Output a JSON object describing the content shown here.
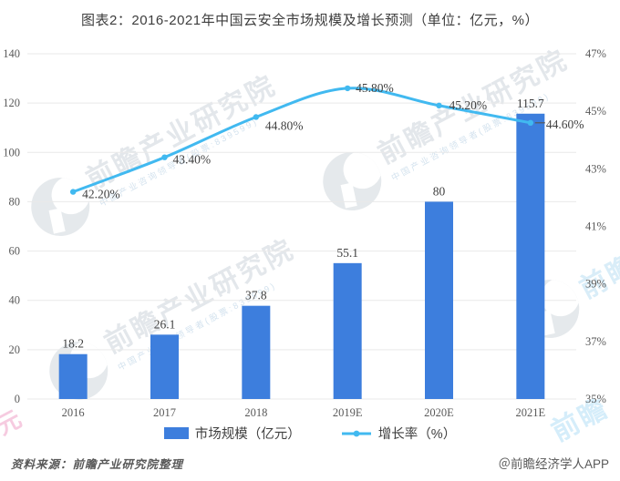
{
  "title": "图表2：2016-2021年中国云安全市场规模及增长预测（单位：亿元，%）",
  "chart_data": {
    "type": "bar+line",
    "categories": [
      "2016",
      "2017",
      "2018",
      "2019E",
      "2020E",
      "2021E"
    ],
    "series": [
      {
        "name": "市场规模（亿元）",
        "type": "bar",
        "axis": "left",
        "values": [
          18.2,
          26.1,
          37.8,
          55.1,
          80,
          115.7
        ],
        "labels": [
          "18.2",
          "26.1",
          "37.8",
          "55.1",
          "80",
          "115.7"
        ],
        "color": "#3d7edd"
      },
      {
        "name": "增长率（%）",
        "type": "line",
        "axis": "right",
        "values": [
          42.2,
          43.4,
          44.8,
          45.8,
          45.2,
          44.6
        ],
        "labels": [
          "42.20%",
          "43.40%",
          "44.80%",
          "45.80%",
          "45.20%",
          "44.60%"
        ],
        "color": "#41b9f0"
      }
    ],
    "left_axis": {
      "min": 0,
      "max": 140,
      "step": 20,
      "ticks": [
        "0",
        "20",
        "40",
        "60",
        "80",
        "100",
        "120",
        "140"
      ]
    },
    "right_axis": {
      "min": 35,
      "max": 47,
      "step": 2,
      "ticks": [
        "35%",
        "37%",
        "39%",
        "41%",
        "43%",
        "45%",
        "47%"
      ]
    },
    "grid": true,
    "legend_position": "bottom",
    "grid_color": "#e9e9e9"
  },
  "legend": {
    "items": [
      {
        "label": "市场规模（亿元）",
        "swatch": "bar",
        "color": "#3d7edd"
      },
      {
        "label": "增长率（%）",
        "swatch": "line",
        "color": "#41b9f0"
      }
    ]
  },
  "footer": {
    "source": "资料来源：前瞻产业研究院整理",
    "credit": "＠前瞻经济学人APP"
  },
  "watermark": {
    "text": "前瞻产业研究院",
    "subtext": "中国产业咨询领导者(股票:839599)",
    "corner_left": "元",
    "corner_right": "前瞻"
  }
}
